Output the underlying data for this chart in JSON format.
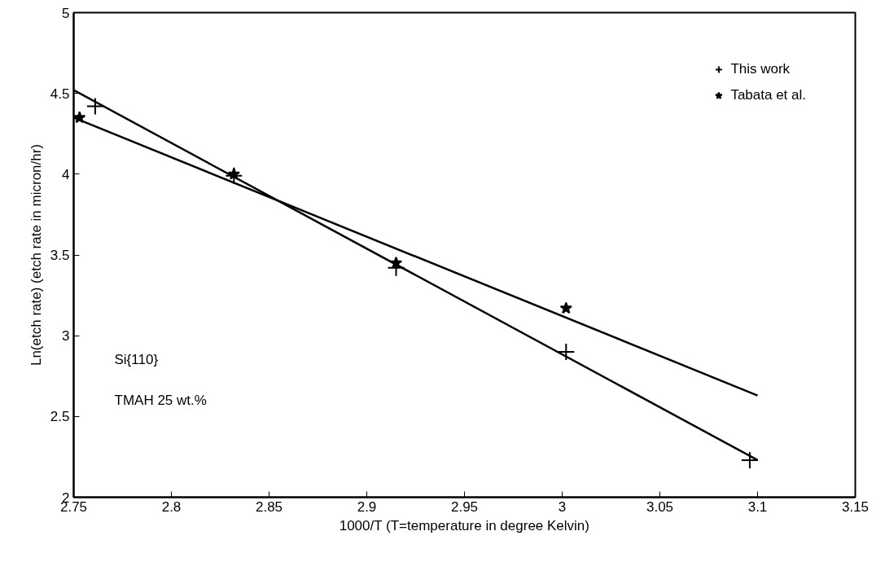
{
  "chart_data": {
    "type": "scatter",
    "xlabel": "1000/T (T=temperature in degree Kelvin)",
    "ylabel": "Ln(etch rate) (etch rate in micron/hr)",
    "xlim": [
      2.75,
      3.15
    ],
    "xticks": [
      2.75,
      2.8,
      2.85,
      2.9,
      2.95,
      3,
      3.05,
      3.1,
      3.15
    ],
    "ylim": [
      2,
      5
    ],
    "yticks": [
      2,
      2.5,
      3,
      3.5,
      4,
      4.5,
      5
    ],
    "series": [
      {
        "name": "This work",
        "marker": "cross",
        "color": "#000000",
        "x": [
          2.761,
          2.832,
          2.915,
          3.002,
          3.096
        ],
        "values": [
          4.42,
          3.99,
          3.42,
          2.9,
          2.23
        ]
      },
      {
        "name": "Tabata et al.",
        "marker": "star",
        "color": "#000000",
        "x": [
          2.753,
          2.832,
          2.915,
          3.002
        ],
        "values": [
          4.35,
          4.0,
          3.45,
          3.17
        ]
      },
      {
        "type": "line",
        "color": "#000000",
        "line_style": "solid",
        "x": [
          2.75,
          3.1
        ],
        "values": [
          4.52,
          2.23
        ]
      },
      {
        "type": "line",
        "color": "#000000",
        "line_style": "solid",
        "x": [
          2.75,
          3.1
        ],
        "values": [
          4.35,
          2.63
        ]
      }
    ],
    "annotations": [
      "Si{110}",
      "TMAH 25 wt.%"
    ],
    "legend": "top right",
    "grid": false
  }
}
